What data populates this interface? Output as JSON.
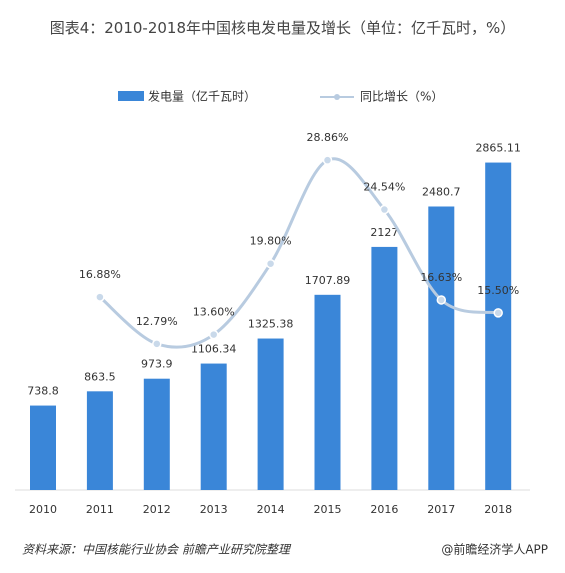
{
  "chart_data": {
    "type": "bar",
    "title": "图表4：2010-2018年中国核电发电量及增长（单位：亿千瓦时，%）",
    "categories": [
      "2010",
      "2011",
      "2012",
      "2013",
      "2014",
      "2015",
      "2016",
      "2017",
      "2018"
    ],
    "series": [
      {
        "name": "发电量（亿千瓦时）",
        "color": "#3a86d8",
        "type": "bar",
        "values": [
          738.8,
          863.5,
          973.9,
          1106.34,
          1325.38,
          1707.89,
          2127,
          2480.7,
          2865.11
        ]
      },
      {
        "name": "同比增长（%）",
        "color": "#b8cbe0",
        "type": "line",
        "axis": "y2",
        "values": [
          null,
          16.88,
          12.79,
          13.6,
          19.8,
          28.86,
          24.54,
          16.63,
          15.5
        ],
        "value_labels": [
          null,
          "16.88%",
          "12.79%",
          "13.60%",
          "19.80%",
          "28.86%",
          "24.54%",
          "16.63%",
          "15.50%"
        ]
      }
    ],
    "ylim": [
      0,
      3150
    ],
    "y2lim": [
      0,
      31.5
    ],
    "legend": "top",
    "source": "资料来源：中国核能行业协会 前瞻产业研究院整理",
    "credit": "@前瞻经济学人APP"
  }
}
